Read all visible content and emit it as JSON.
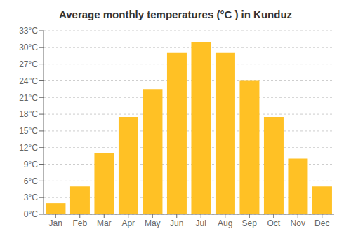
{
  "chart_data": {
    "type": "bar",
    "title": "Average monthly temperatures (°C ) in Kunduz",
    "categories": [
      "Jan",
      "Feb",
      "Mar",
      "Apr",
      "May",
      "Jun",
      "Jul",
      "Aug",
      "Sep",
      "Oct",
      "Nov",
      "Dec"
    ],
    "values": [
      2,
      5,
      11,
      17.5,
      22.5,
      29,
      31,
      29,
      24,
      17.5,
      10,
      5
    ],
    "color": "#FFC125",
    "ylim": [
      0,
      33
    ],
    "yticks": [
      {
        "value": 0,
        "label": "0°C"
      },
      {
        "value": 3,
        "label": "3°C"
      },
      {
        "value": 6,
        "label": "6°C"
      },
      {
        "value": 9,
        "label": "9°C"
      },
      {
        "value": 12,
        "label": "12°C"
      },
      {
        "value": 15,
        "label": "15°C"
      },
      {
        "value": 18,
        "label": "18°C"
      },
      {
        "value": 21,
        "label": "21°C"
      },
      {
        "value": 24,
        "label": "24°C"
      },
      {
        "value": 27,
        "label": "27°C"
      },
      {
        "value": 30,
        "label": "30°C"
      },
      {
        "value": 33,
        "label": "33°C"
      }
    ],
    "grid": true
  }
}
